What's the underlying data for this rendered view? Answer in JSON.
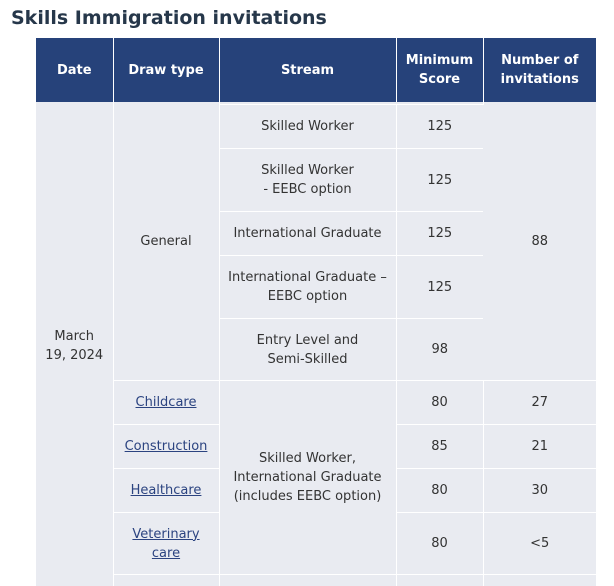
{
  "page_title": "Skills Immigration invitations",
  "table": {
    "headers": {
      "date": "Date",
      "draw_type": "Draw type",
      "stream": "Stream",
      "min_score_line1": "Minimum",
      "min_score_line2": "Score",
      "invitations_line1": "Number of",
      "invitations_line2": "invitations"
    },
    "date": {
      "line1": "March",
      "line2": "19, 2024"
    },
    "general": {
      "draw_type": "General",
      "invitations": "88",
      "rows": [
        {
          "stream_line1": "Skilled Worker",
          "stream_line2": "",
          "score": "125"
        },
        {
          "stream_line1": "Skilled Worker",
          "stream_line2": "- EEBC option",
          "score": "125"
        },
        {
          "stream_line1": "International Graduate",
          "stream_line2": "",
          "score": "125"
        },
        {
          "stream_line1": "International Graduate –",
          "stream_line2": "EEBC option",
          "score": "125"
        },
        {
          "stream_line1": "Entry Level and",
          "stream_line2": "Semi-Skilled",
          "score": "98"
        }
      ]
    },
    "targeted": {
      "stream_line1": "Skilled Worker,",
      "stream_line2": "International Graduate",
      "stream_line3": "(includes EEBC option)",
      "rows": [
        {
          "draw_type": "Childcare",
          "draw_type_line2": "",
          "score": "80",
          "invitations": "27"
        },
        {
          "draw_type": "Construction",
          "draw_type_line2": "",
          "score": "85",
          "invitations": "21"
        },
        {
          "draw_type": "Healthcare",
          "draw_type_line2": "",
          "score": "80",
          "invitations": "30"
        },
        {
          "draw_type": "Veterinary",
          "draw_type_line2": "care",
          "score": "80",
          "invitations": "<5"
        }
      ]
    }
  },
  "colors": {
    "title": "#26374a",
    "header_bg": "#26427a",
    "cell_bg": "#e9ebf1",
    "link": "#2b4380"
  }
}
